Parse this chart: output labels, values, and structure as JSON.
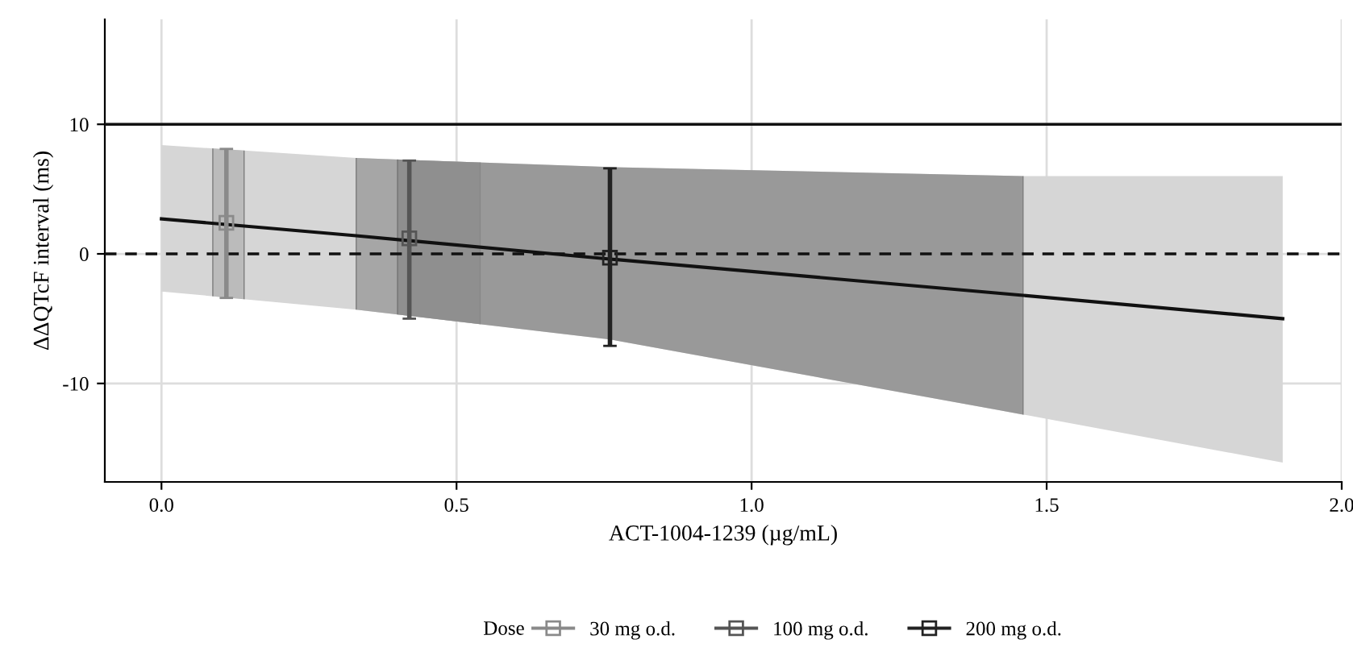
{
  "chart_data": {
    "type": "scatter",
    "xlabel": "ACT-1004-1239 (µg/mL)",
    "ylabel": "ΔΔQTcF interval (ms)",
    "legend_title": "Dose",
    "xlim": [
      -0.096,
      2.0
    ],
    "ylim": [
      -17.6,
      18.1
    ],
    "xticks": [
      {
        "value": 0,
        "label": "0.0"
      },
      {
        "value": 0.5,
        "label": "0.5"
      },
      {
        "value": 1,
        "label": "1.0"
      },
      {
        "value": 1.5,
        "label": "1.5"
      },
      {
        "value": 2,
        "label": "2.0"
      }
    ],
    "yticks": [
      -10,
      0,
      10
    ],
    "grid": true,
    "legend": "bottom",
    "series": [
      {
        "type": "line",
        "color": "#111111",
        "x": [
          0,
          0.33,
          0.76,
          1.46,
          1.9
        ],
        "values": [
          2.7,
          1.4,
          -0.4,
          -3.2,
          -5.0
        ],
        "lower": [
          -2.9,
          -4.3,
          -6.6,
          -12.4,
          -16.1
        ],
        "upper": [
          8.4,
          7.4,
          6.7,
          6.0,
          6.0
        ]
      },
      {
        "marker": "square",
        "name": "30 mg o.d.",
        "color": "#8a8a8a",
        "x": [
          0.11
        ],
        "values": [
          2.4
        ],
        "errors": [
          [
            -3.4,
            8.1
          ]
        ]
      },
      {
        "marker": "square",
        "name": "100 mg o.d.",
        "color": "#555555",
        "x": [
          0.42
        ],
        "values": [
          1.2
        ],
        "errors": [
          [
            -5.0,
            7.2
          ]
        ]
      },
      {
        "marker": "square",
        "name": "200 mg o.d.",
        "color": "#222222",
        "x": [
          0.76
        ],
        "values": [
          -0.3
        ],
        "errors": [
          [
            -7.1,
            6.6
          ]
        ]
      }
    ],
    "bands": [
      {
        "axis": "x",
        "from": 0.087,
        "to": 0.14,
        "color": "#b5b5b5"
      },
      {
        "axis": "x",
        "from": 0.33,
        "to": 0.54,
        "color": "#9a9a9a"
      },
      {
        "axis": "x",
        "from": 0.4,
        "to": 1.46,
        "color": "#8a8a8a"
      }
    ],
    "ref_lines": [
      {
        "axis": "y",
        "value": 10,
        "line_style": "solid",
        "color": "#111111"
      },
      {
        "axis": "y",
        "value": 0,
        "line_style": "dashed",
        "color": "#111111"
      }
    ]
  }
}
